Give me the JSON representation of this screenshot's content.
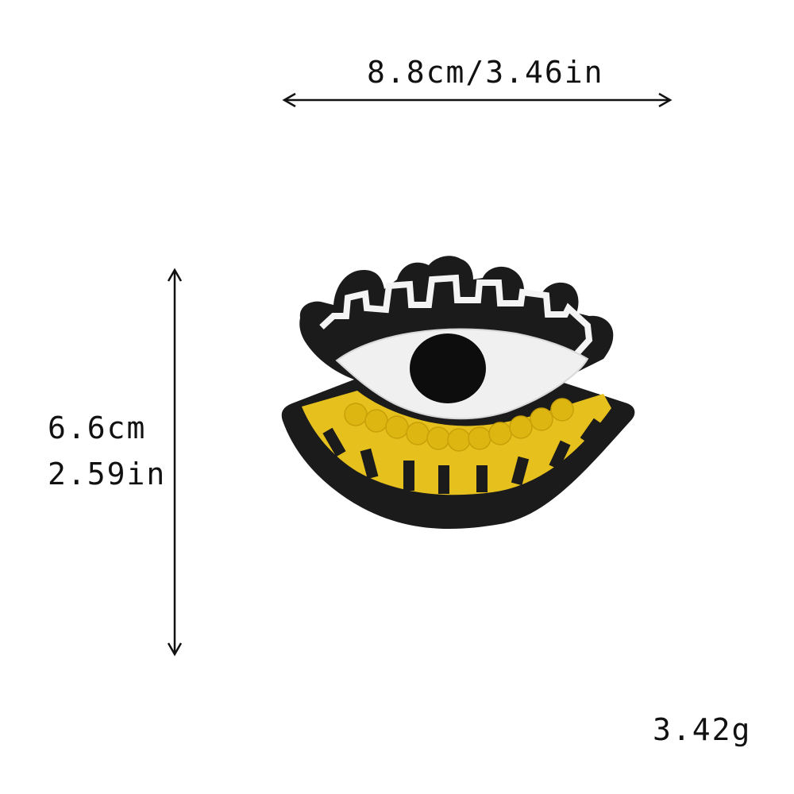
{
  "dimensions": {
    "width_label": "8.8cm/3.46in",
    "height_cm_label": "6.6cm",
    "height_in_label": "2.59in"
  },
  "weight_label": "3.42g",
  "product": {
    "name": "embroidered-eye-patch",
    "colors": {
      "border": "#1a1a1a",
      "sclera": "#f2f2f2",
      "pupil": "#0d0d0d",
      "lower_lid": "#e8c21a",
      "accent_stripes": "#1a1a1a",
      "stitching": "#ffffff"
    }
  }
}
